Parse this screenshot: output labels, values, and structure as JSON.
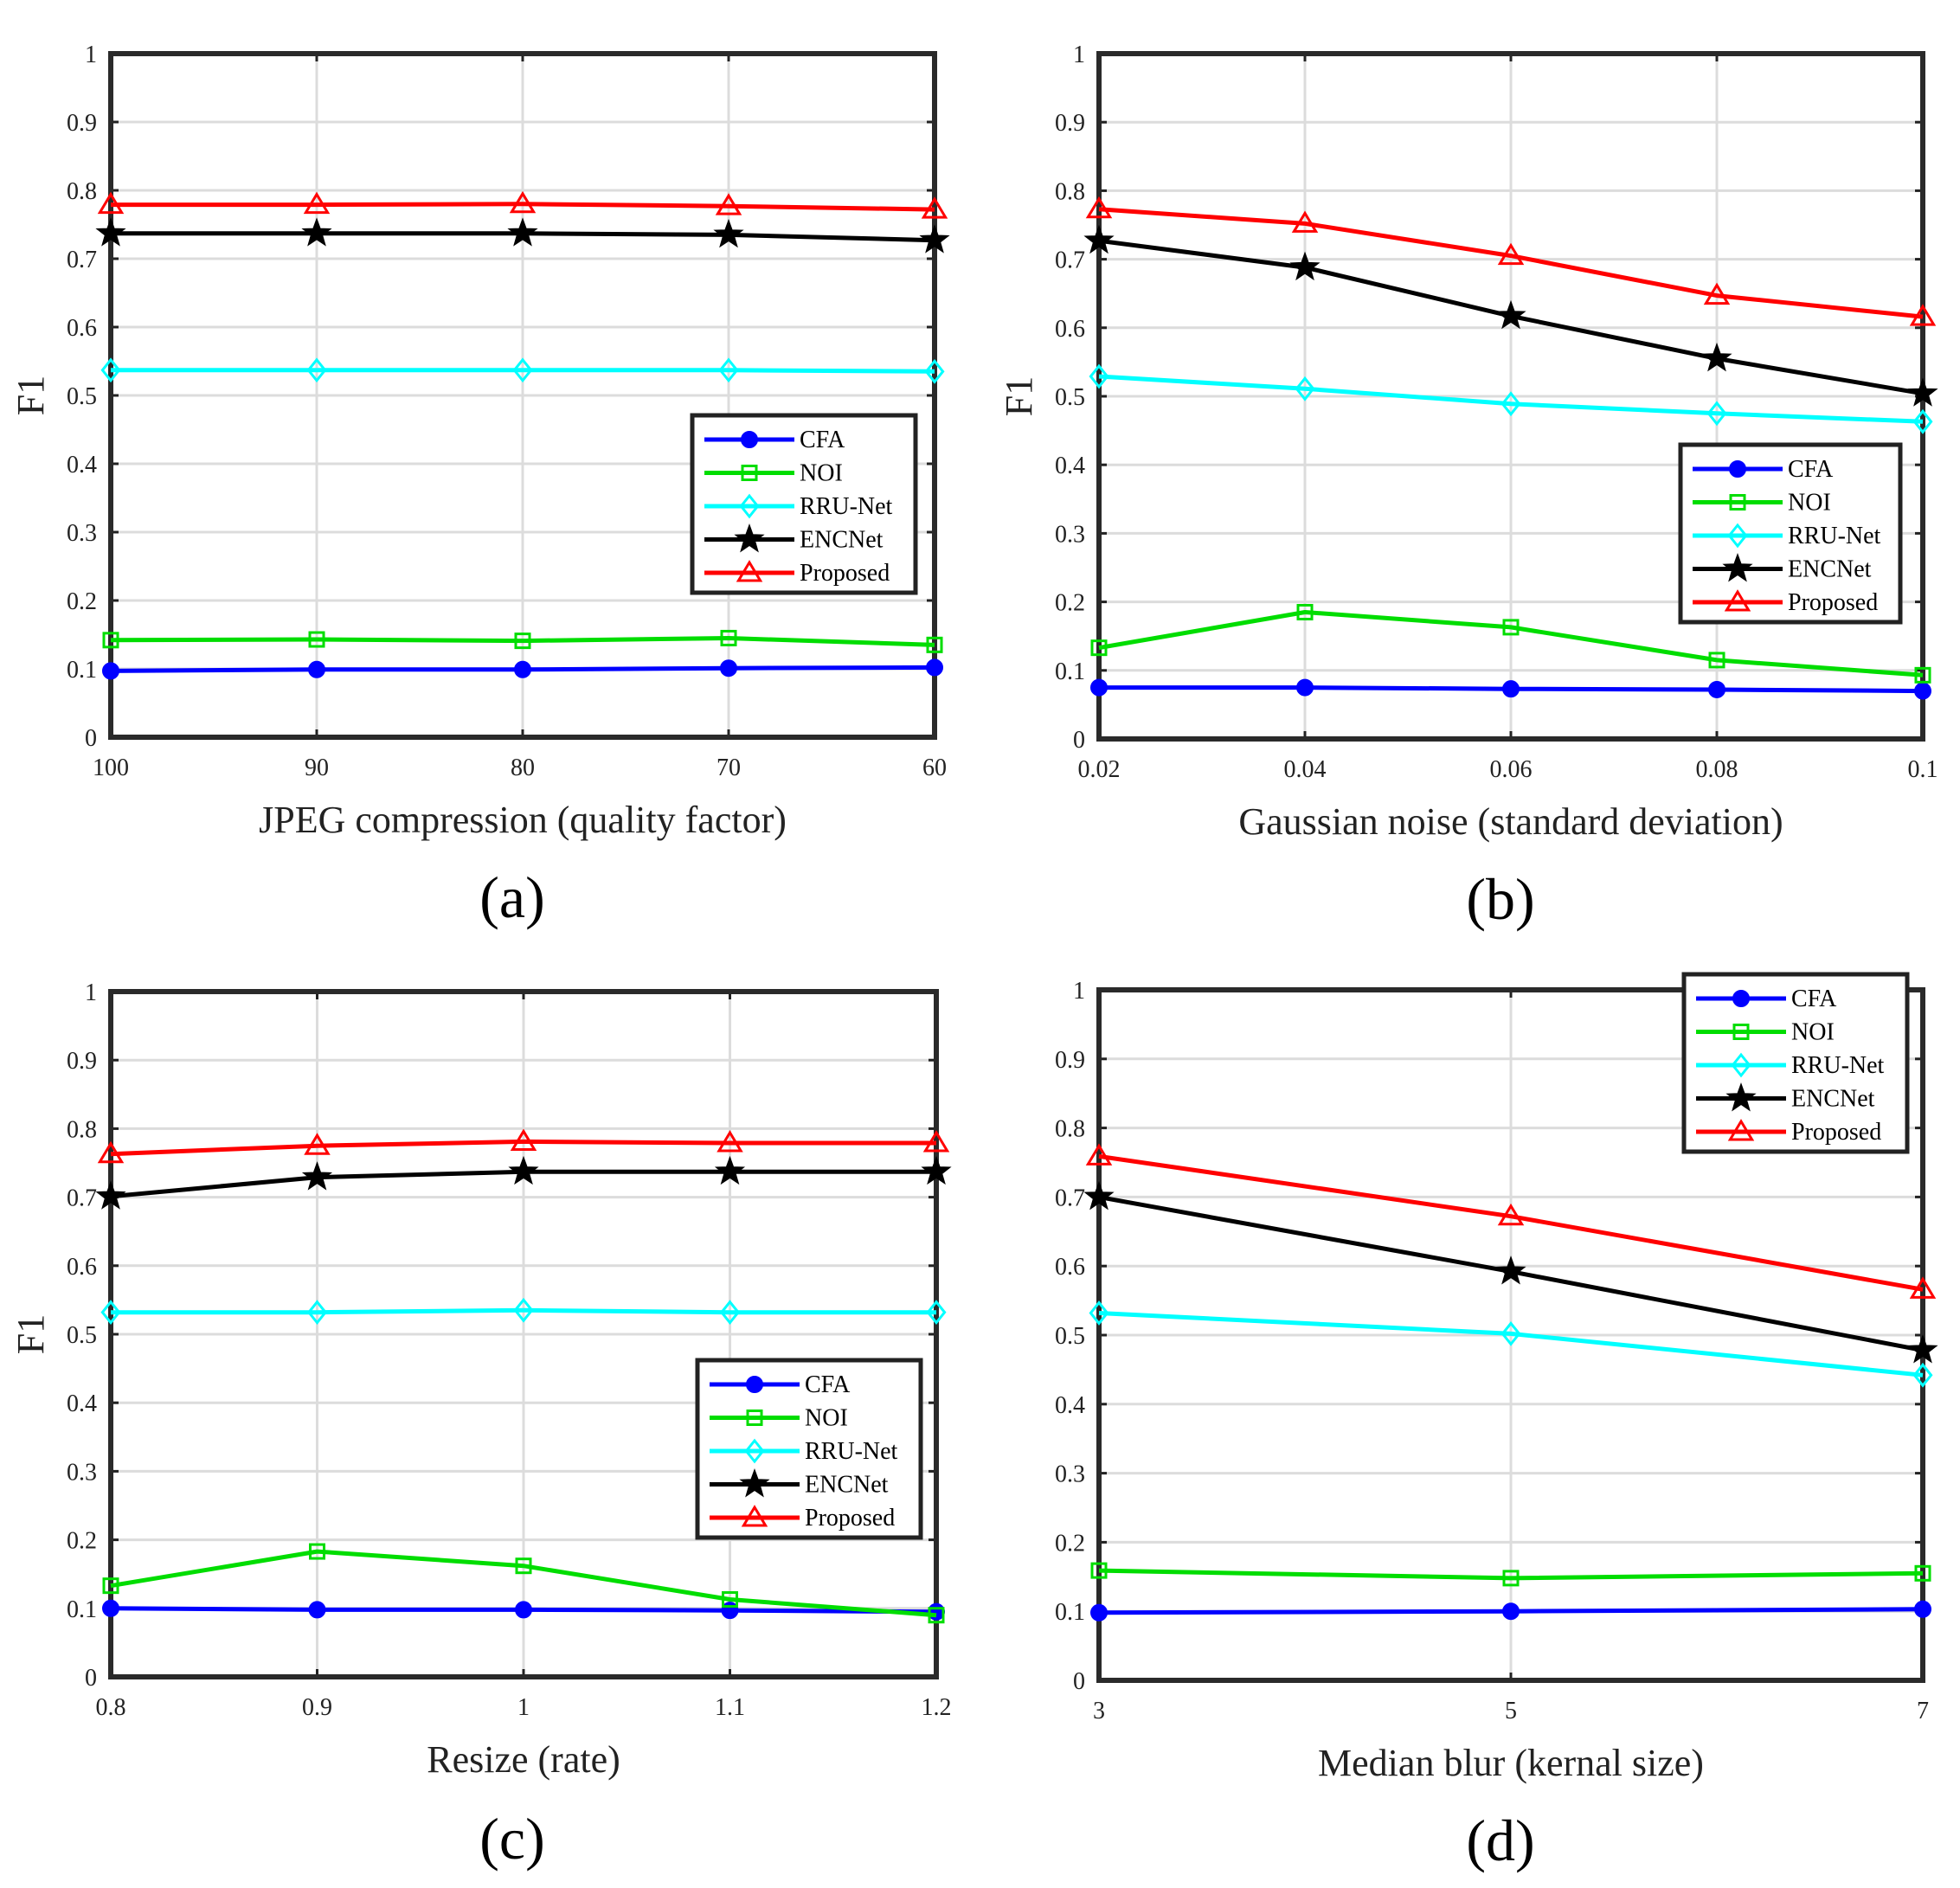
{
  "series_styles": {
    "CFA": {
      "color": "#0000ff",
      "marker": "circle"
    },
    "NOI": {
      "color": "#00dd00",
      "marker": "square"
    },
    "RRU-Net": {
      "color": "#00ffff",
      "marker": "diamond"
    },
    "ENCNet": {
      "color": "#000000",
      "marker": "star"
    },
    "Proposed": {
      "color": "#ff0000",
      "marker": "triangle"
    }
  },
  "chart_data": [
    {
      "type": "line",
      "caption": "(a)",
      "xlabel": "JPEG compression (quality factor)",
      "ylabel": "F1",
      "categories": [
        "100",
        "90",
        "80",
        "70",
        "60"
      ],
      "ylim": [
        0,
        1
      ],
      "yticks": [
        "0",
        "0.1",
        "0.2",
        "0.3",
        "0.4",
        "0.5",
        "0.6",
        "0.7",
        "0.8",
        "0.9",
        "1"
      ],
      "grid": true,
      "legend": "lower-right",
      "series": [
        {
          "name": "CFA",
          "values": [
            0.097,
            0.099,
            0.099,
            0.101,
            0.102
          ]
        },
        {
          "name": "NOI",
          "values": [
            0.142,
            0.143,
            0.141,
            0.145,
            0.135
          ]
        },
        {
          "name": "RRU-Net",
          "values": [
            0.537,
            0.537,
            0.537,
            0.537,
            0.535
          ]
        },
        {
          "name": "ENCNet",
          "values": [
            0.737,
            0.737,
            0.737,
            0.735,
            0.727
          ]
        },
        {
          "name": "Proposed",
          "values": [
            0.779,
            0.779,
            0.78,
            0.777,
            0.772
          ]
        }
      ]
    },
    {
      "type": "line",
      "caption": "(b)",
      "xlabel": "Gaussian noise (standard deviation)",
      "ylabel": "F1",
      "categories": [
        "0.02",
        "0.04",
        "0.06",
        "0.08",
        "0.1"
      ],
      "ylim": [
        0,
        1
      ],
      "yticks": [
        "0",
        "0.1",
        "0.2",
        "0.3",
        "0.4",
        "0.5",
        "0.6",
        "0.7",
        "0.8",
        "0.9",
        "1"
      ],
      "grid": true,
      "legend": "lower-right",
      "series": [
        {
          "name": "CFA",
          "values": [
            0.075,
            0.075,
            0.073,
            0.072,
            0.07
          ]
        },
        {
          "name": "NOI",
          "values": [
            0.133,
            0.185,
            0.163,
            0.115,
            0.093
          ]
        },
        {
          "name": "RRU-Net",
          "values": [
            0.529,
            0.511,
            0.489,
            0.475,
            0.463
          ]
        },
        {
          "name": "ENCNet",
          "values": [
            0.727,
            0.688,
            0.617,
            0.555,
            0.504
          ]
        },
        {
          "name": "Proposed",
          "values": [
            0.773,
            0.752,
            0.705,
            0.647,
            0.616
          ]
        }
      ]
    },
    {
      "type": "line",
      "caption": "(c)",
      "xlabel": "Resize (rate)",
      "ylabel": "F1",
      "categories": [
        "0.8",
        "0.9",
        "1",
        "1.1",
        "1.2"
      ],
      "ylim": [
        0,
        1
      ],
      "yticks": [
        "0",
        "0.1",
        "0.2",
        "0.3",
        "0.4",
        "0.5",
        "0.6",
        "0.7",
        "0.8",
        "0.9",
        "1"
      ],
      "grid": true,
      "legend": "lower-right",
      "series": [
        {
          "name": "CFA",
          "values": [
            0.1,
            0.098,
            0.098,
            0.097,
            0.095
          ]
        },
        {
          "name": "NOI",
          "values": [
            0.133,
            0.183,
            0.162,
            0.113,
            0.09
          ]
        },
        {
          "name": "RRU-Net",
          "values": [
            0.532,
            0.532,
            0.535,
            0.532,
            0.532
          ]
        },
        {
          "name": "ENCNet",
          "values": [
            0.701,
            0.729,
            0.737,
            0.737,
            0.737
          ]
        },
        {
          "name": "Proposed",
          "values": [
            0.763,
            0.775,
            0.781,
            0.779,
            0.779
          ]
        }
      ]
    },
    {
      "type": "line",
      "caption": "(d)",
      "xlabel": "Median blur (kernal size)",
      "ylabel": "",
      "categories": [
        "3",
        "5",
        "7"
      ],
      "ylim": [
        0,
        1
      ],
      "yticks": [
        "0",
        "0.1",
        "0.2",
        "0.3",
        "0.4",
        "0.5",
        "0.6",
        "0.7",
        "0.8",
        "0.9",
        "1"
      ],
      "grid": true,
      "legend": "upper-right",
      "series": [
        {
          "name": "CFA",
          "values": [
            0.098,
            0.1,
            0.103
          ]
        },
        {
          "name": "NOI",
          "values": [
            0.159,
            0.148,
            0.155
          ]
        },
        {
          "name": "RRU-Net",
          "values": [
            0.532,
            0.502,
            0.442
          ]
        },
        {
          "name": "ENCNet",
          "values": [
            0.7,
            0.592,
            0.478
          ]
        },
        {
          "name": "Proposed",
          "values": [
            0.759,
            0.672,
            0.566
          ]
        }
      ]
    }
  ]
}
